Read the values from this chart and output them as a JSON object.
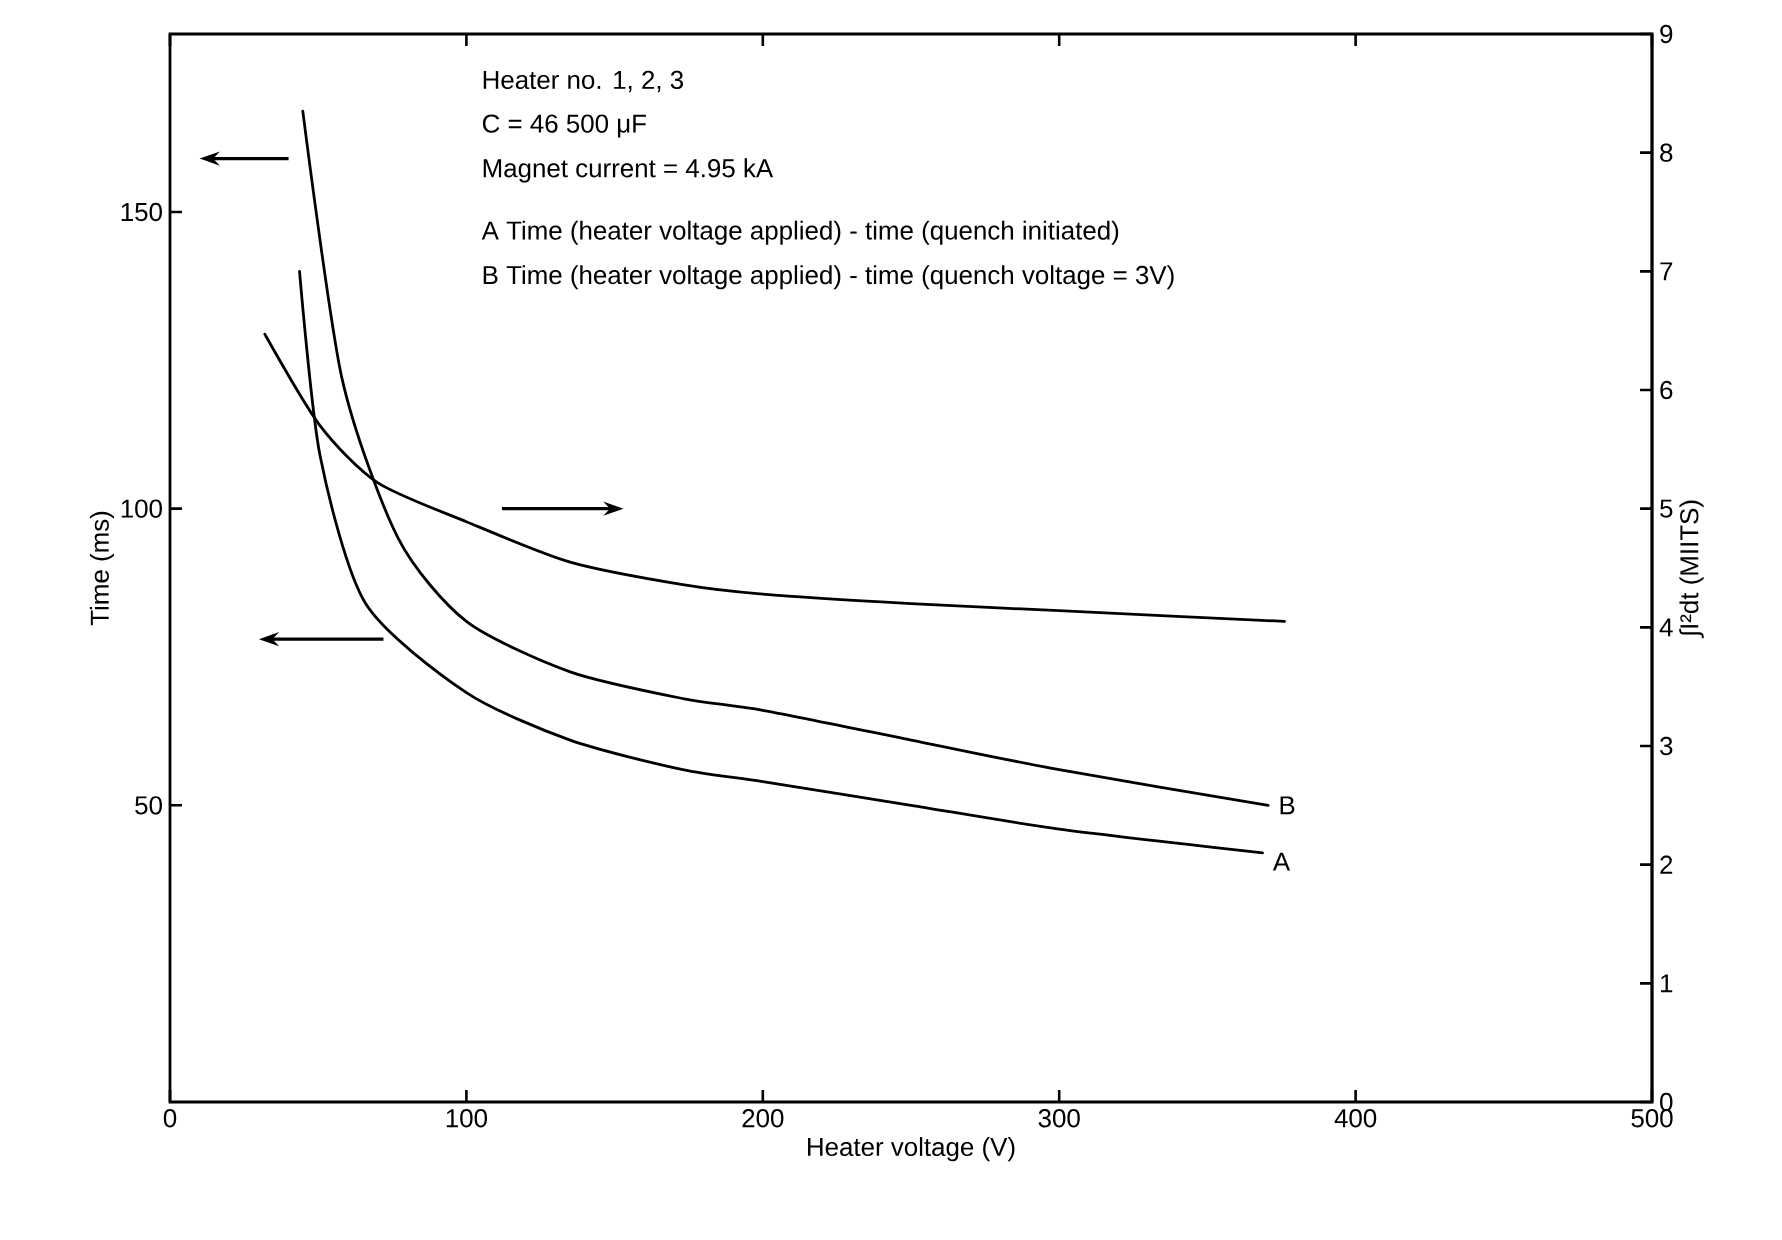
{
  "chart_data": {
    "type": "line",
    "xlabel": "Heater voltage (V)",
    "ylabel": "Time (ms)",
    "y2label": "∫I²dt (MIITS)",
    "xlim": [
      0,
      500
    ],
    "xticks": [
      0,
      100,
      200,
      300,
      400,
      500
    ],
    "ylim": [
      0,
      180
    ],
    "yticks": [
      50,
      100,
      150
    ],
    "y2lim": [
      0,
      9
    ],
    "y2ticks": [
      0,
      1,
      2,
      3,
      4,
      5,
      6,
      7,
      8,
      9
    ],
    "legend": false,
    "grid": false,
    "marker": "none",
    "line_style": "solid",
    "annotations": [
      "Heater no. 1, 2, 3",
      "C = 46 500 μF",
      "Magnet current = 4.95 kA",
      "A  Time (heater voltage applied) - time (quench initiated)",
      "B  Time (heater voltage applied) - time (quench voltage = 3V)"
    ],
    "series": [
      {
        "name": "A",
        "color": "#000000",
        "x": [
          43.7,
          50.6,
          66,
          100,
          135,
          173,
          200,
          250,
          300,
          368.6
        ],
        "values": [
          140,
          109,
          84,
          69,
          61,
          56,
          54,
          50,
          46,
          42
        ]
      },
      {
        "name": "B",
        "color": "#000000",
        "x": [
          44.8,
          58,
          77,
          100,
          135,
          173,
          200,
          250,
          300,
          370.5
        ],
        "values": [
          167,
          122,
          95,
          81,
          72.5,
          68,
          66,
          61,
          56,
          50
        ]
      },
      {
        "color": "#000000",
        "axis": "y2",
        "x": [
          32,
          50.6,
          70,
          100,
          135,
          173,
          200,
          250,
          300,
          376
        ],
        "values": [
          6.47,
          5.7,
          5.22,
          4.89,
          4.55,
          4.36,
          4.28,
          4.2,
          4.14,
          4.05
        ]
      }
    ]
  }
}
